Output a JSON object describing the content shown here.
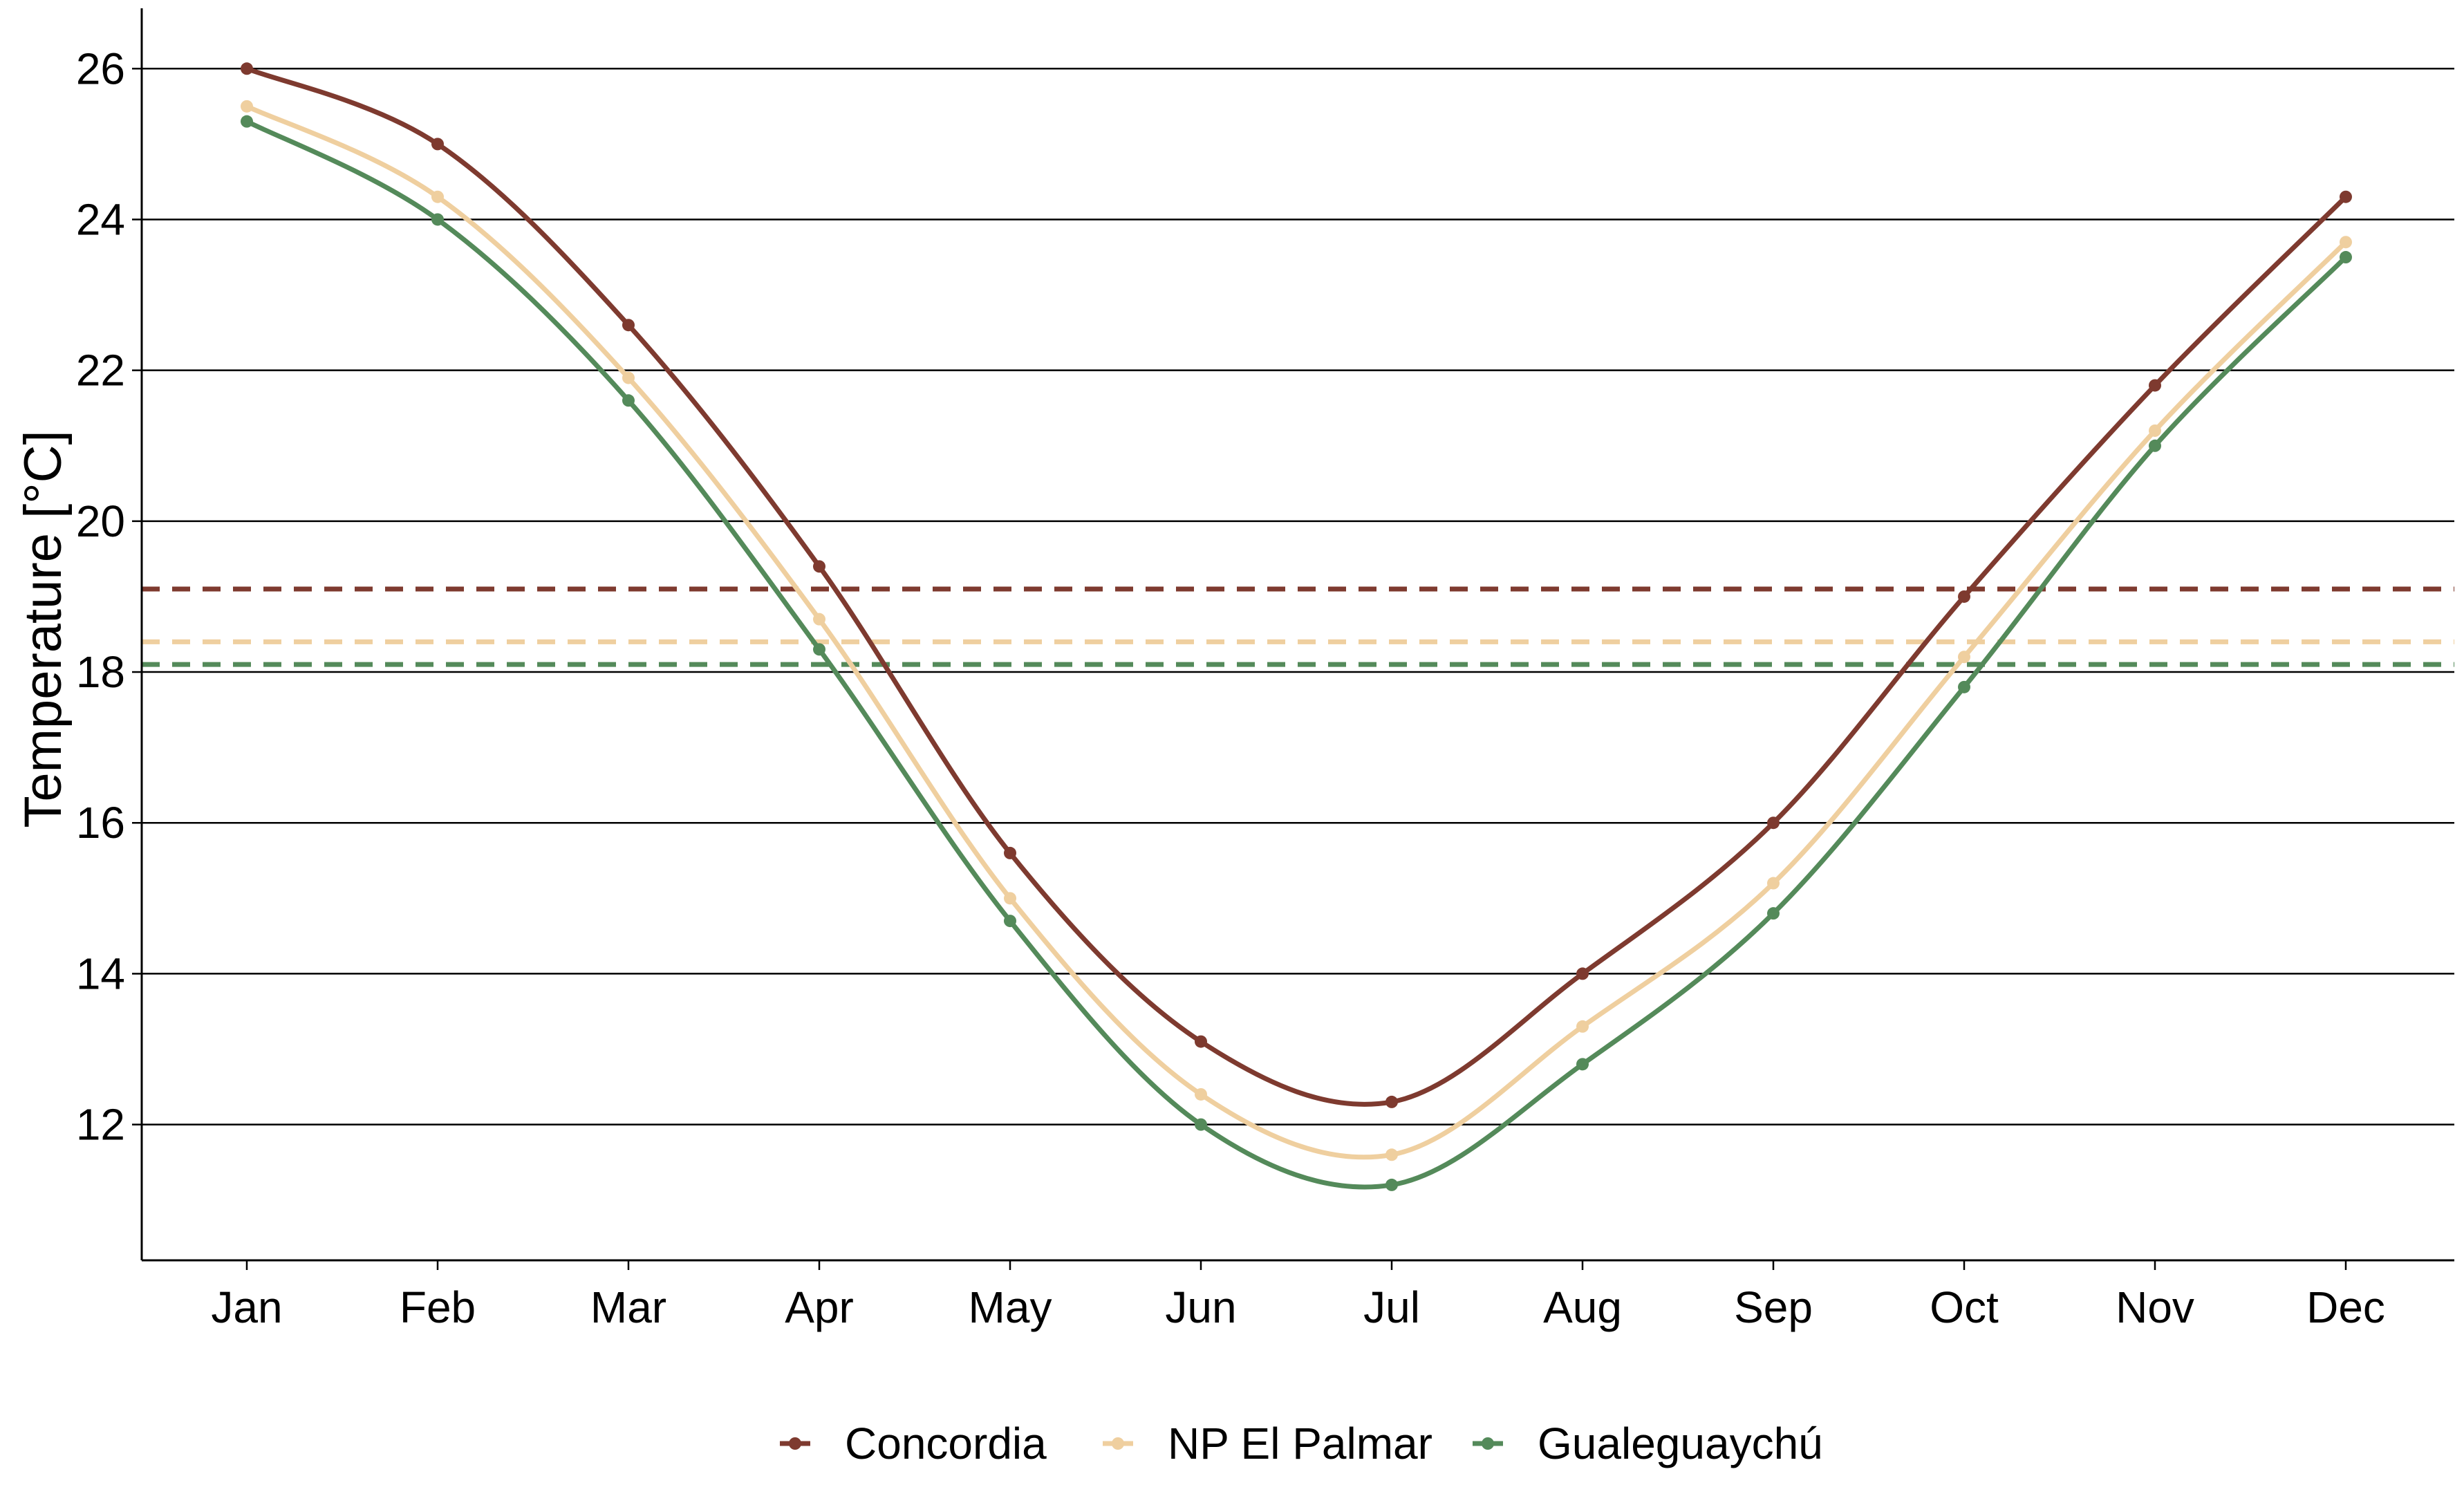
{
  "chart_data": {
    "type": "line",
    "title": "",
    "xlabel": "",
    "ylabel": "Temperature [°C]",
    "categories": [
      "Jan",
      "Feb",
      "Mar",
      "Apr",
      "May",
      "Jun",
      "Jul",
      "Aug",
      "Sep",
      "Oct",
      "Nov",
      "Dec"
    ],
    "ylim": [
      10.2,
      26.8
    ],
    "yticks": [
      12,
      14,
      16,
      18,
      20,
      22,
      24,
      26
    ],
    "grid": "horizontal",
    "legend_position": "bottom",
    "series": [
      {
        "name": "Concordia",
        "color": "#7e3a2f",
        "mean": 19.1,
        "values": [
          26.0,
          25.0,
          22.6,
          19.4,
          15.6,
          13.1,
          12.3,
          14.0,
          16.0,
          19.0,
          21.8,
          24.3
        ]
      },
      {
        "name": "NP El Palmar",
        "color": "#efcf9f",
        "mean": 18.4,
        "values": [
          25.5,
          24.3,
          21.9,
          18.7,
          15.0,
          12.4,
          11.6,
          13.3,
          15.2,
          18.2,
          21.2,
          23.7
        ]
      },
      {
        "name": "Gualeguaychú",
        "color": "#548a5a",
        "mean": 18.1,
        "values": [
          25.3,
          24.0,
          21.6,
          18.3,
          14.7,
          12.0,
          11.2,
          12.8,
          14.8,
          17.8,
          21.0,
          23.5
        ]
      }
    ]
  }
}
